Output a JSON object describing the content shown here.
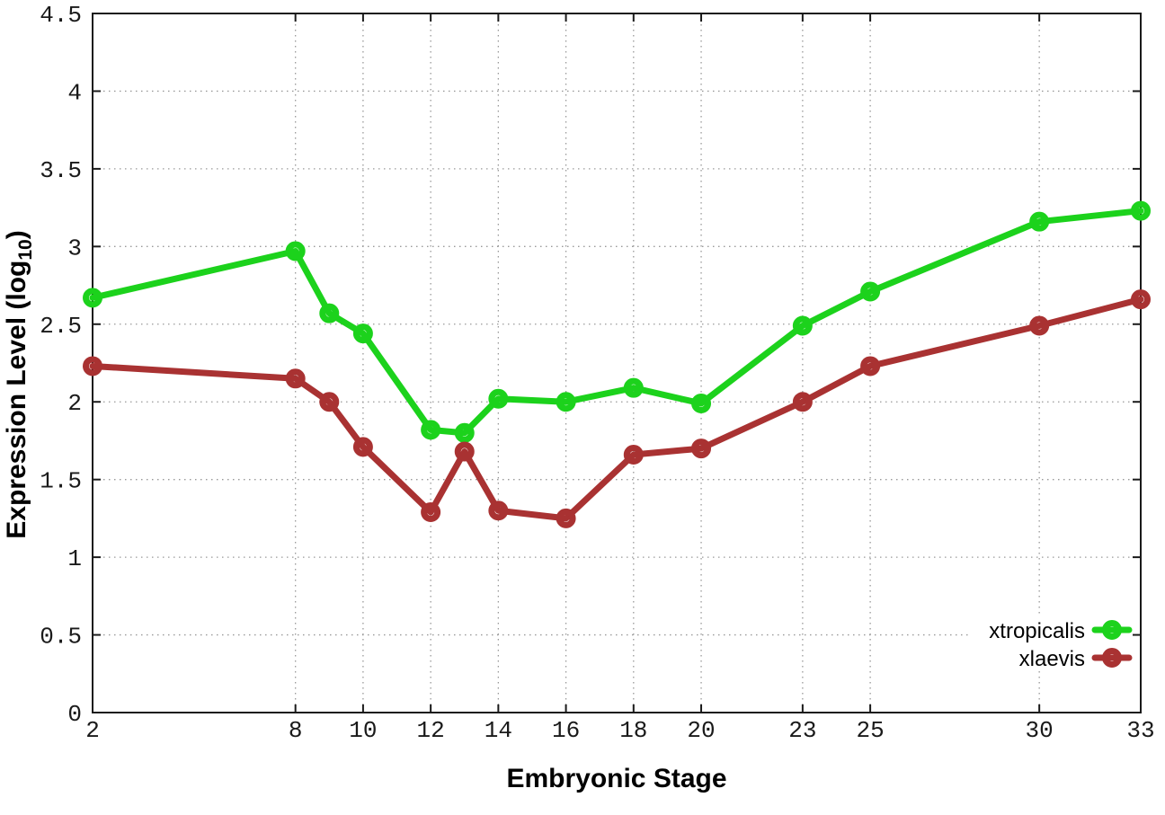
{
  "chart_data": {
    "type": "line",
    "title": "",
    "xlabel": "Embryonic Stage",
    "ylabel": "Expression Level (log10)",
    "ylabel_parts": {
      "pre": "Expression Level (log",
      "sub": "10",
      "post": ")"
    },
    "xlim": [
      2,
      33
    ],
    "ylim": [
      0,
      4.5
    ],
    "x_ticks": [
      2,
      8,
      10,
      12,
      14,
      16,
      18,
      20,
      23,
      25,
      30,
      33
    ],
    "y_ticks": [
      0,
      0.5,
      1,
      1.5,
      2,
      2.5,
      3,
      3.5,
      4,
      4.5
    ],
    "grid": true,
    "legend_position": "bottom-right",
    "x": [
      2,
      8,
      9,
      10,
      12,
      13,
      14,
      16,
      18,
      20,
      23,
      25,
      30,
      33
    ],
    "series": [
      {
        "name": "xtropicalis",
        "color": "#1cd21c",
        "values": [
          2.67,
          2.97,
          2.57,
          2.44,
          1.82,
          1.8,
          2.02,
          2.0,
          2.09,
          1.99,
          2.49,
          2.71,
          3.16,
          3.23
        ]
      },
      {
        "name": "xlaevis",
        "color": "#a93232",
        "values": [
          2.23,
          2.15,
          2.0,
          1.71,
          1.29,
          1.68,
          1.3,
          1.25,
          1.66,
          1.7,
          2.0,
          2.23,
          2.49,
          2.66
        ]
      }
    ],
    "colors": {
      "background": "#ffffff",
      "border": "#1a1a1a",
      "grid": "#999999",
      "tick_text": "#1a1a1a"
    }
  }
}
